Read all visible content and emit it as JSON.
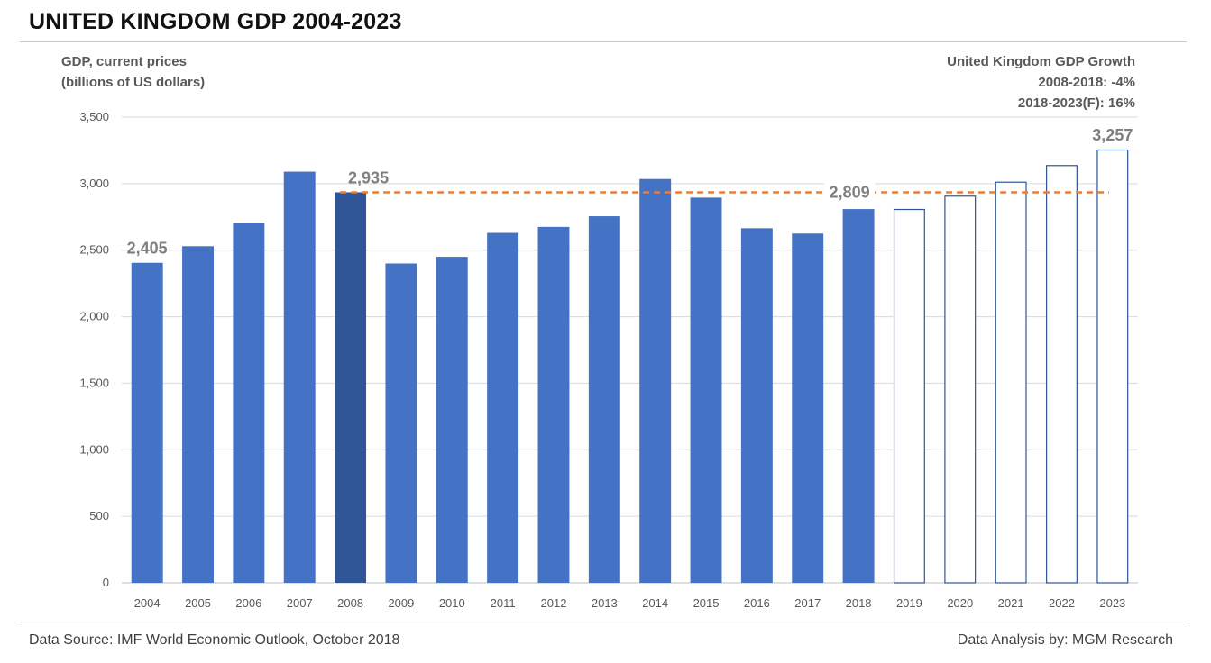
{
  "chart_data": {
    "type": "bar",
    "title": "UNITED KINGDOM GDP 2004-2023",
    "ylabel": "GDP, current prices",
    "ylabel_sub": "(billions of US dollars)",
    "categories": [
      "2004",
      "2005",
      "2006",
      "2007",
      "2008",
      "2009",
      "2010",
      "2011",
      "2012",
      "2013",
      "2014",
      "2015",
      "2016",
      "2017",
      "2018",
      "2019",
      "2020",
      "2021",
      "2022",
      "2023"
    ],
    "values": [
      2405,
      2530,
      2705,
      3090,
      2935,
      2400,
      2450,
      2630,
      2675,
      2755,
      3035,
      2895,
      2665,
      2625,
      2809,
      2810,
      2910,
      3015,
      3140,
      3257
    ],
    "forecast_from": "2019",
    "highlight": "2008",
    "ylim": [
      0,
      3500
    ],
    "yticks": [
      0,
      500,
      1000,
      1500,
      2000,
      2500,
      3000,
      3500
    ],
    "ytick_labels": [
      "0",
      "500",
      "1,000",
      "1,500",
      "2,000",
      "2,500",
      "3,000",
      "3,500"
    ],
    "grid": true,
    "data_labels": [
      {
        "category": "2004",
        "text": "2,405"
      },
      {
        "category": "2008",
        "text": "2,935"
      },
      {
        "category": "2018",
        "text": "2,809"
      },
      {
        "category": "2023",
        "text": "3,257"
      }
    ],
    "reference_line": {
      "value": 2935,
      "from": "2008",
      "to": "2023"
    },
    "growth_note": {
      "title": "United Kingdom GDP Growth",
      "line1": "2008-2018: -4%",
      "line2": "2018-2023(F): 16%"
    },
    "colors": {
      "bar": "#4472c4",
      "highlight": "#2f5597",
      "forecast_stroke": "#2f5597",
      "reference": "#ed7d31",
      "grid": "#d9d9d9"
    }
  },
  "footer": {
    "source": "Data Source: IMF World Economic Outlook, October 2018",
    "analysis": "Data Analysis by: MGM Research"
  }
}
